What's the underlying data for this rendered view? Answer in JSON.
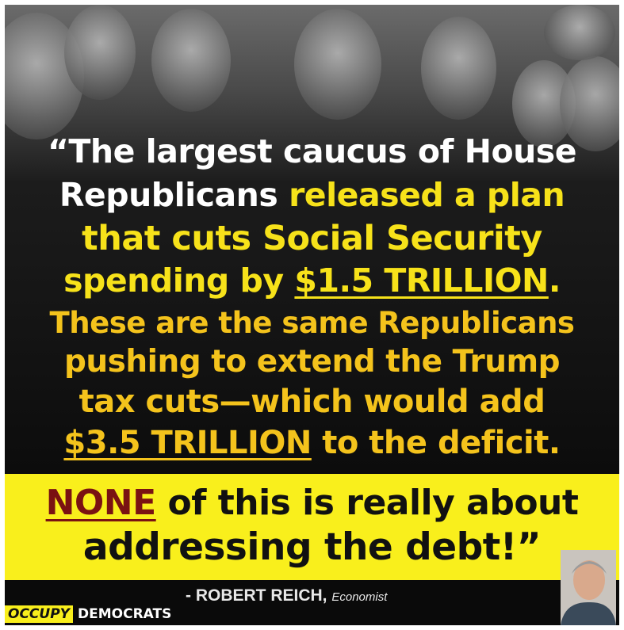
{
  "quote": {
    "lines": [
      [
        "“The largest caucus of House"
      ],
      [
        "Republicans",
        "released a plan"
      ],
      [
        "that cuts Social Security"
      ],
      [
        "spending by",
        "$1.5 TRILLION",
        "."
      ],
      [
        "These are the same Republicans"
      ],
      [
        "pushing to extend the Trump"
      ],
      [
        "tax cuts—which would add"
      ],
      [
        "$3.5 TRILLION",
        "to the deficit."
      ]
    ],
    "conclusion": [
      [
        "NONE",
        "of this is really about"
      ],
      [
        "addressing the debt!”"
      ]
    ]
  },
  "attribution": {
    "author": "- ROBERT REICH,",
    "role": "Economist"
  },
  "brand": {
    "first": "OCCUPY",
    "second": "DEMOCRATS"
  }
}
